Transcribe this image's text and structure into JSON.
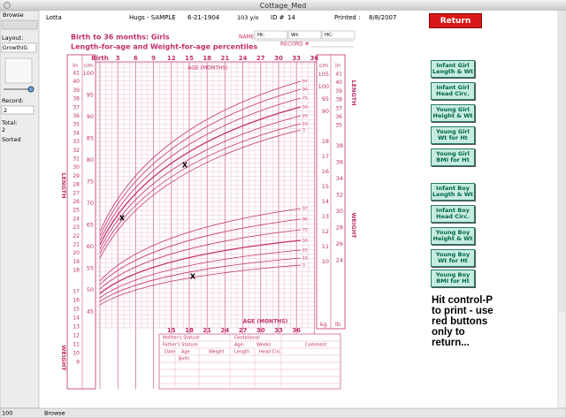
{
  "window": {
    "title": "Cottage_Med"
  },
  "sidebar": {
    "mode": "Browse",
    "layout_label": "Layout:",
    "layout": "GrowthIG",
    "record_label": "Record:",
    "record": "2",
    "total_label": "Total:",
    "total": "2",
    "sort_status": "Sorted"
  },
  "status_bar": {
    "zoom": "100",
    "mode": "Browse"
  },
  "header": {
    "patient_name": "Lotta",
    "doctor": "Hugs - SAMPLE",
    "dob": "6-21-1904",
    "age": "103 y/o",
    "id_label": "ID #",
    "id": "14",
    "printed_label": "Printed :",
    "printed": "8/8/2007",
    "return_button": "Return"
  },
  "form": {
    "name": "NAME",
    "ht": "Ht:",
    "wt": "Wt:",
    "hc": "HC:",
    "record": "RECORD #"
  },
  "chart": {
    "title": "Birth to 36 months: Girls",
    "subtitle": "Length-for-age and Weight-for-age percentiles",
    "age_ticks": [
      "Birth",
      "3",
      "6",
      "9",
      "12",
      "15",
      "18",
      "21",
      "24",
      "27",
      "30",
      "33",
      "36"
    ],
    "age_axis_label": "AGE (MONTHS)",
    "length_label": "LENGTH",
    "weight_label": "WEIGHT",
    "left_in_unit": "in",
    "left_cm_unit": "cm",
    "left_in_ticks": [
      "41",
      "40",
      "39",
      "38",
      "37",
      "36",
      "35",
      "34",
      "33",
      "32",
      "31",
      "30",
      "29",
      "28",
      "27",
      "26",
      "25",
      "24",
      "23",
      "22",
      "21",
      "20",
      "19",
      "18"
    ],
    "left_cm_ticks": [
      "100",
      "95",
      "90",
      "85",
      "80",
      "75",
      "70",
      "65",
      "60",
      "55",
      "50",
      "45"
    ],
    "left_lb_ticks": [
      "17",
      "16",
      "15",
      "14",
      "13",
      "12",
      "11",
      "10",
      "9"
    ],
    "right_cm_unit": "cm",
    "right_in_unit": "in",
    "right_cm_ticks": [
      "105",
      "100",
      "95",
      "90"
    ],
    "right_in_ticks": [
      "41",
      "40",
      "39",
      "38",
      "37",
      "36",
      "35"
    ],
    "length_percentiles": [
      "97",
      "90",
      "75",
      "50",
      "25",
      "10",
      "3"
    ],
    "weight_percentiles": [
      "97",
      "90",
      "75",
      "50",
      "25",
      "10",
      "3"
    ],
    "right_kg_ticks": [
      "18",
      "17",
      "16",
      "15",
      "14",
      "13",
      "12",
      "11",
      "10"
    ],
    "right_lb_ticks": [
      "38",
      "36",
      "34",
      "32",
      "30",
      "28",
      "26",
      "24"
    ],
    "lower_age_ticks": [
      "15",
      "18",
      "21",
      "24",
      "27",
      "30",
      "33",
      "36"
    ],
    "lower_age_label": "AGE (MONTHS)",
    "lower_kg_unit": "kg",
    "lower_lb_unit": "lb",
    "plot_markers": [
      "X",
      "X",
      "X"
    ]
  },
  "record_table": {
    "mothers_stature": "Mother's Stature",
    "fathers_stature": "Father's Stature",
    "gestational": "Gestational",
    "age": "Age:",
    "weeks": "Weeks",
    "comment": "Comment",
    "columns": [
      "Date",
      "Age",
      "Weight",
      "Length",
      "Head Circ."
    ],
    "first_row": "Birth"
  },
  "buttons": [
    "Infant Girl Length & Wt",
    "Infant Girl Head Circ.",
    "Young Girl Height & Wt",
    "Young Girl Wt for Ht",
    "Young Girl BMI for Ht",
    "Infant Boy Length & Wt",
    "Infant Boy Head Circ.",
    "Young Boy Height & Wt",
    "Young Boy Wt for Ht",
    "Young Boy BMI for Ht"
  ],
  "print_note": "Hit control-P to print - use red buttons only to return..."
}
